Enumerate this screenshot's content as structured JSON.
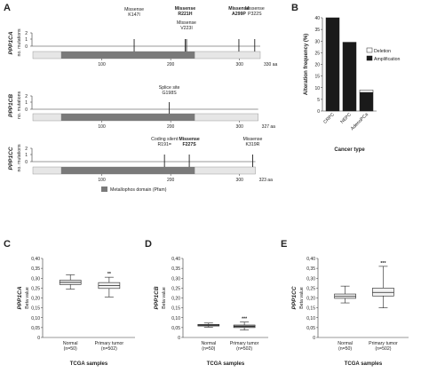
{
  "domain_tag": "Chart",
  "panel_labels": [
    "A",
    "B",
    "C",
    "D",
    "E"
  ],
  "chart_data": [
    {
      "type": "lollipop",
      "panel": "A",
      "gene": "PPP1CA",
      "ylabel": "no. mutations",
      "yticks": [
        "2",
        "1",
        "0"
      ],
      "length": 330,
      "length_label": "330 aa",
      "xticks": [
        100,
        200,
        300
      ],
      "domain_range": [
        41,
        235
      ],
      "mutations": [
        {
          "label": "Missense",
          "sub": "K147I",
          "pos": 147,
          "count": 1,
          "bold": false
        },
        {
          "label": "Missense",
          "sub": "R221H",
          "pos": 221,
          "count": 1,
          "bold": true
        },
        {
          "label": "Missense",
          "sub": "V223I",
          "pos": 223,
          "count": 1,
          "bold": false
        },
        {
          "label": "Missense",
          "sub": "A299P",
          "pos": 299,
          "count": 1,
          "bold": true
        },
        {
          "label": "Missense",
          "sub": "P322S",
          "pos": 322,
          "count": 1,
          "bold": false
        }
      ]
    },
    {
      "type": "lollipop",
      "panel": "A",
      "gene": "PPP1CB",
      "ylabel": "no. mutations",
      "yticks": [
        "2",
        "1",
        "0"
      ],
      "length": 327,
      "length_label": "327 aa",
      "xticks": [
        100,
        200,
        300
      ],
      "domain_range": [
        41,
        235
      ],
      "mutations": [
        {
          "label": "Splice site",
          "sub": "G198S",
          "pos": 198,
          "count": 1,
          "bold": false
        }
      ]
    },
    {
      "type": "lollipop",
      "panel": "A",
      "gene": "PPP1CC",
      "ylabel": "no. mutations",
      "yticks": [
        "2",
        "1",
        "0"
      ],
      "length": 323,
      "length_label": "323 aa",
      "xticks": [
        100,
        200,
        300
      ],
      "domain_range": [
        41,
        235
      ],
      "mutations": [
        {
          "label": "Coding silent",
          "sub": "R191=",
          "pos": 191,
          "count": 1,
          "bold": false
        },
        {
          "label": "Missense",
          "sub": "F227S",
          "pos": 227,
          "count": 1,
          "bold": true
        },
        {
          "label": "Missense",
          "sub": "K319R",
          "pos": 319,
          "count": 1,
          "bold": false
        }
      ],
      "legend": "Metallophos domain (Pfam)"
    },
    {
      "type": "bar",
      "panel": "B",
      "categories": [
        "CRPC",
        "NEPC",
        "AdenoPCa"
      ],
      "series": [
        {
          "name": "Deletion",
          "values": [
            0,
            0,
            1
          ],
          "color": "#ffffff"
        },
        {
          "name": "Amplification",
          "values": [
            40,
            29.5,
            8
          ],
          "color": "#1a1a1a"
        }
      ],
      "xlabel": "Cancer type",
      "ylabel": "Alteration frequency (%)",
      "ylim": [
        0,
        40
      ],
      "yticks": [
        0,
        5,
        10,
        15,
        20,
        25,
        30,
        35,
        40
      ],
      "legend_position": "top-right"
    },
    {
      "type": "boxplot",
      "panel": "C",
      "gene": "PPP1CA",
      "ylabel": "Beta value",
      "ylim": [
        0,
        0.4
      ],
      "yticks": [
        "0",
        "0,05",
        "0,10",
        "0,15",
        "0,20",
        "0,25",
        "0,30",
        "0,35",
        "0,40"
      ],
      "xlabel": "TCGA samples",
      "groups": [
        {
          "name": "Normal",
          "n": "(n=50)",
          "whisker_low": 0.245,
          "q1": 0.268,
          "median": 0.279,
          "q3": 0.29,
          "whisker_high": 0.317,
          "color": "#f2f2f2"
        },
        {
          "name": "Primary tumor",
          "n": "(n=502)",
          "whisker_low": 0.205,
          "q1": 0.248,
          "median": 0.263,
          "q3": 0.278,
          "whisker_high": 0.305,
          "color": "#f2f2f2"
        }
      ],
      "significance": "**"
    },
    {
      "type": "boxplot",
      "panel": "D",
      "gene": "PPP1CB",
      "ylabel": "Beta value",
      "ylim": [
        0,
        0.4
      ],
      "yticks": [
        "0",
        "0,05",
        "0,10",
        "0,15",
        "0,20",
        "0,25",
        "0,30",
        "0,35",
        "0,40"
      ],
      "xlabel": "TCGA samples",
      "groups": [
        {
          "name": "Normal",
          "n": "(n=50)",
          "whisker_low": 0.052,
          "q1": 0.058,
          "median": 0.062,
          "q3": 0.066,
          "whisker_high": 0.073,
          "color": "#999999"
        },
        {
          "name": "Primary tumor",
          "n": "(n=502)",
          "whisker_low": 0.038,
          "q1": 0.05,
          "median": 0.056,
          "q3": 0.063,
          "whisker_high": 0.078,
          "color": "#999999"
        }
      ],
      "significance": "***"
    },
    {
      "type": "boxplot",
      "panel": "E",
      "gene": "PPP1CC",
      "ylabel": "Beta value",
      "ylim": [
        0,
        0.4
      ],
      "yticks": [
        "0",
        "0,05",
        "0,10",
        "0,15",
        "0,20",
        "0,25",
        "0,30",
        "0,35",
        "0,40"
      ],
      "xlabel": "TCGA samples",
      "groups": [
        {
          "name": "Normal",
          "n": "(n=50)",
          "whisker_low": 0.175,
          "q1": 0.198,
          "median": 0.208,
          "q3": 0.22,
          "whisker_high": 0.26,
          "color": "#f2f2f2"
        },
        {
          "name": "Primary tumor",
          "n": "(n=502)",
          "whisker_low": 0.15,
          "q1": 0.21,
          "median": 0.228,
          "q3": 0.25,
          "whisker_high": 0.36,
          "color": "#f2f2f2"
        }
      ],
      "significance": "***"
    }
  ]
}
